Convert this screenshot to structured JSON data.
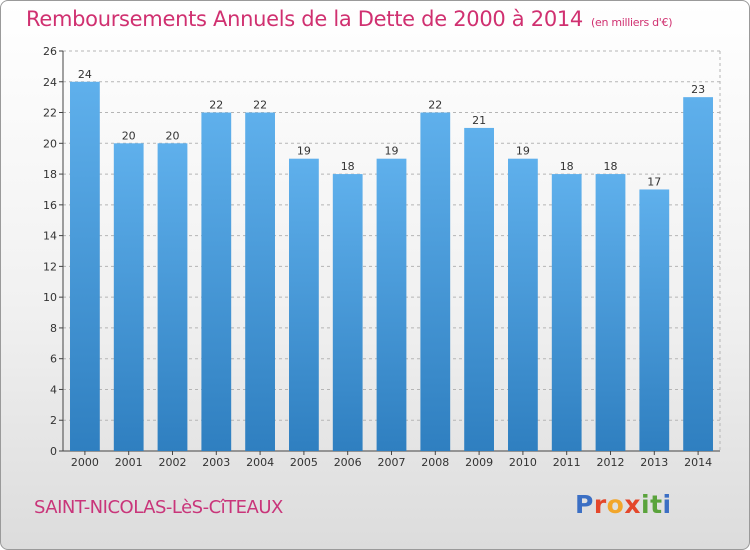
{
  "title": "Remboursements Annuels de la Dette de 2000 à 2014",
  "unit": "(en milliers d'€)",
  "commune": "SAINT-NICOLAS-LèS-CîTEAUX",
  "logo": {
    "text": "Proxiti",
    "colors": [
      "#3b6fc4",
      "#e4472b",
      "#f2a62b",
      "#e4472b",
      "#5aa33c",
      "#5aa33c",
      "#3b6fc4"
    ]
  },
  "colors": {
    "bar_light": "#5fb0ec",
    "bar_dark": "#2f7fc0",
    "title": "#d03070"
  },
  "chart_data": {
    "type": "bar",
    "categories": [
      "2000",
      "2001",
      "2002",
      "2003",
      "2004",
      "2005",
      "2006",
      "2007",
      "2008",
      "2009",
      "2010",
      "2011",
      "2012",
      "2013",
      "2014"
    ],
    "values": [
      24,
      20,
      20,
      22,
      22,
      19,
      18,
      19,
      22,
      21,
      19,
      18,
      18,
      17,
      23
    ],
    "ylim": [
      0,
      26
    ],
    "yticks": [
      0,
      2,
      4,
      6,
      8,
      10,
      12,
      14,
      16,
      18,
      20,
      22,
      24,
      26
    ],
    "grid": true,
    "gridstyle": "dashed",
    "xlabel": "",
    "ylabel": ""
  }
}
